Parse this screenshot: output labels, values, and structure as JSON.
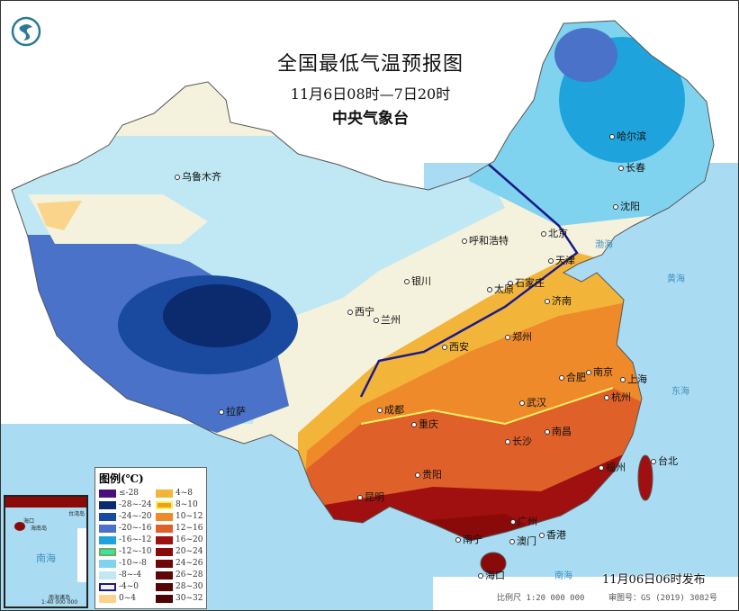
{
  "header": {
    "title": "全国最低气温预报图",
    "period": "11月6日08时—7日20时",
    "agency": "中央气象台"
  },
  "logo": {
    "icon": "cma-dragon-logo-icon"
  },
  "cities": [
    "乌鲁木齐",
    "哈尔滨",
    "长春",
    "沈阳",
    "北京",
    "天津",
    "呼和浩特",
    "石家庄",
    "太原",
    "济南",
    "银川",
    "西宁",
    "兰州",
    "西安",
    "郑州",
    "合肥",
    "南京",
    "上海",
    "杭州",
    "武汉",
    "成都",
    "重庆",
    "长沙",
    "南昌",
    "拉萨",
    "贵阳",
    "昆明",
    "福州",
    "台北",
    "广州",
    "澳门",
    "香港",
    "南宁",
    "海口"
  ],
  "seas": [
    "渤海",
    "黄海",
    "东海",
    "南海"
  ],
  "legend": {
    "title": "图例(℃)",
    "items": [
      {
        "label": "≤-28",
        "color": "#4a0f7a"
      },
      {
        "label": "-28~-24",
        "color": "#0c2a6e"
      },
      {
        "label": "-24~-20",
        "color": "#1a4aa0"
      },
      {
        "label": "-20~-16",
        "color": "#4a72c8"
      },
      {
        "label": "-16~-12",
        "color": "#1ea3dc"
      },
      {
        "label": "-12~-10",
        "color": "#3ee0b0",
        "outline": "#6ab04c"
      },
      {
        "label": "-10~-8",
        "color": "#7fd3ef"
      },
      {
        "label": "-8~-4",
        "color": "#bfe8f4"
      },
      {
        "label": "-4~0",
        "color": "#f4f1dc",
        "outline": "#1a1a8c"
      },
      {
        "label": "0~4",
        "color": "#f9d48a"
      },
      {
        "label": "4~8",
        "color": "#f3b43a"
      },
      {
        "label": "8~10",
        "color": "#f0a010",
        "outline": "#f8f060"
      },
      {
        "label": "10~12",
        "color": "#ee8a2a"
      },
      {
        "label": "12~16",
        "color": "#e0602a"
      },
      {
        "label": "16~20",
        "color": "#a01010"
      },
      {
        "label": "20~24",
        "color": "#8a0a0a"
      },
      {
        "label": "24~26",
        "color": "#6e0808"
      },
      {
        "label": "26~28",
        "color": "#600606"
      },
      {
        "label": "28~30",
        "color": "#560505"
      },
      {
        "label": "30~32",
        "color": "#4c0404"
      }
    ]
  },
  "inset": {
    "labels": [
      "海口",
      "海南岛",
      "台湾岛",
      "南海",
      "南海诸岛",
      "1:40 000 000"
    ]
  },
  "footer": {
    "issued": "11月06日06时发布",
    "scale": "比例尺 1:20 000 000",
    "review": "审图号：GS (2019) 3082号"
  }
}
